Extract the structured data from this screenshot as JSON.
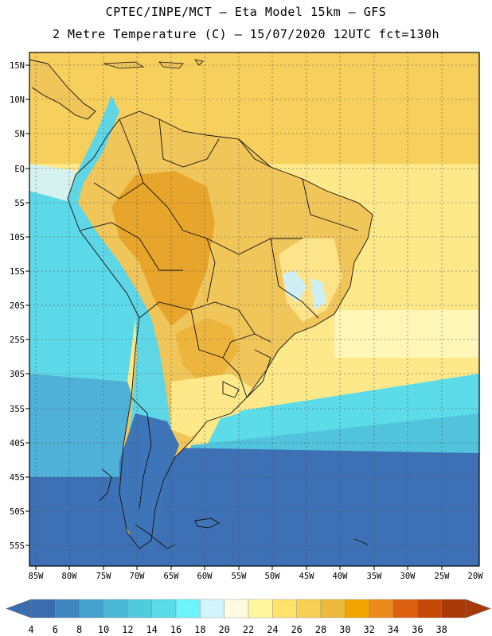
{
  "header": {
    "line1": "CPTEC/INPE/MCT –  Eta Model 15km – GFS",
    "line2": "2 Metre Temperature (C) – 15/07/2020 12UTC fct=130h"
  },
  "axes": {
    "lat_labels": [
      "15N",
      "10N",
      "5N",
      "EQ",
      "5S",
      "10S",
      "15S",
      "20S",
      "25S",
      "30S",
      "35S",
      "40S",
      "45S",
      "50S",
      "55S"
    ],
    "lon_labels": [
      "85W",
      "80W",
      "75W",
      "70W",
      "65W",
      "60W",
      "55W",
      "50W",
      "45W",
      "40W",
      "35W",
      "30W",
      "25W",
      "20W"
    ]
  },
  "colorbar": {
    "labels": [
      "4",
      "6",
      "8",
      "10",
      "12",
      "14",
      "16",
      "18",
      "20",
      "22",
      "24",
      "26",
      "28",
      "30",
      "32",
      "34",
      "36",
      "38"
    ],
    "colors": [
      "#3a6cb0",
      "#3f85be",
      "#45a2cc",
      "#4cb8d8",
      "#52cade",
      "#5cdce8",
      "#6cf4fa",
      "#d4f4fb",
      "#fffbe0",
      "#fff6a0",
      "#fde36c",
      "#f6cf55",
      "#ecbb3e",
      "#f2a500",
      "#ea8a1a",
      "#dc6010",
      "#c44808",
      "#a83808"
    ],
    "left_arrow_color": "#3a6cb0",
    "right_arrow_color": "#a83808"
  },
  "palette": {
    "ocean_cold": "#3f6fb5",
    "ocean_mid": "#56b2d9",
    "ocean_cool": "#5bdbe9",
    "ocean_warm": "#fcef95",
    "ocean_tropical": "#f8d96e",
    "land_warm": "#f0c45a",
    "land_hot": "#e8a72e",
    "andes_cold": "#5dd7e6",
    "patagonia": "#3d74b8"
  }
}
